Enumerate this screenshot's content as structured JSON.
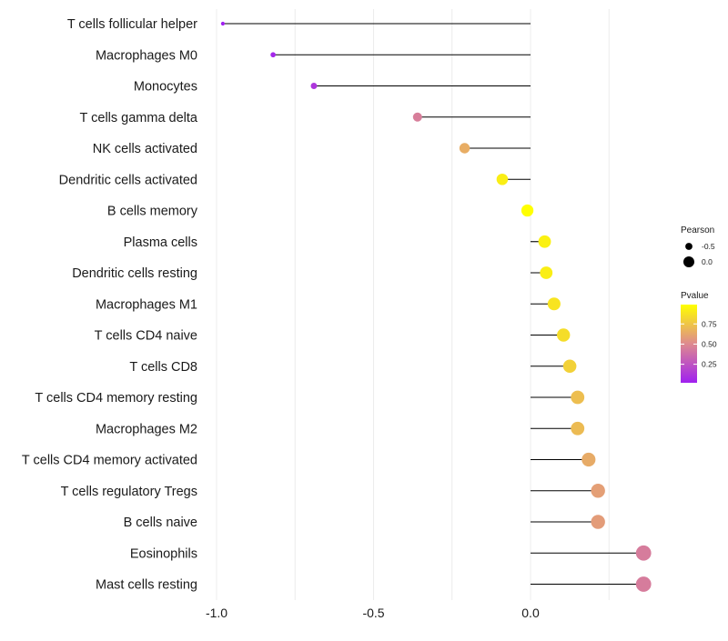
{
  "chart_data": {
    "type": "lollipop",
    "title": "",
    "xlabel": "",
    "ylabel": "",
    "xlim": [
      -1.0,
      0.38
    ],
    "xticks": [
      -1.0,
      -0.5,
      0.0
    ],
    "xtick_labels": [
      "-1.0",
      "-0.5",
      "0.0"
    ],
    "categories": [
      "T cells follicular helper",
      "Macrophages M0",
      "Monocytes",
      "T cells gamma delta",
      "NK cells activated",
      "Dendritic cells activated",
      "B cells memory",
      "Plasma cells",
      "Dendritic cells resting",
      "Macrophages M1",
      "T cells CD4 naive",
      "T cells CD8",
      "T cells CD4 memory resting",
      "Macrophages M2",
      "T cells CD4 memory activated",
      "T cells regulatory  Tregs ",
      "B cells naive",
      "Eosinophils",
      "Mast cells resting"
    ],
    "pearson": [
      -0.98,
      -0.82,
      -0.69,
      -0.36,
      -0.21,
      -0.09,
      -0.01,
      0.045,
      0.05,
      0.075,
      0.105,
      0.125,
      0.15,
      0.15,
      0.185,
      0.215,
      0.215,
      0.36,
      0.36
    ],
    "pvalue": [
      0.02,
      0.05,
      0.12,
      0.45,
      0.65,
      0.92,
      0.99,
      0.93,
      0.92,
      0.88,
      0.85,
      0.8,
      0.72,
      0.71,
      0.64,
      0.59,
      0.58,
      0.44,
      0.44
    ],
    "legend": {
      "size_title": "Pearson",
      "size_entries": [
        {
          "label": "-0.5",
          "value": -0.5
        },
        {
          "label": "0.0",
          "value": 0.0
        }
      ],
      "color_title": "Pvalue",
      "color_ticks": [
        {
          "label": "0.75",
          "value": 0.75
        },
        {
          "label": "0.50",
          "value": 0.5
        },
        {
          "label": "0.25",
          "value": 0.25
        }
      ],
      "color_range": [
        0.02,
        0.99
      ],
      "color_low": "#a020f0",
      "color_mid": "#de8a8f",
      "color_high": "#ffff00"
    },
    "stem_color": "#000000",
    "gridline_color": "#ececec"
  }
}
